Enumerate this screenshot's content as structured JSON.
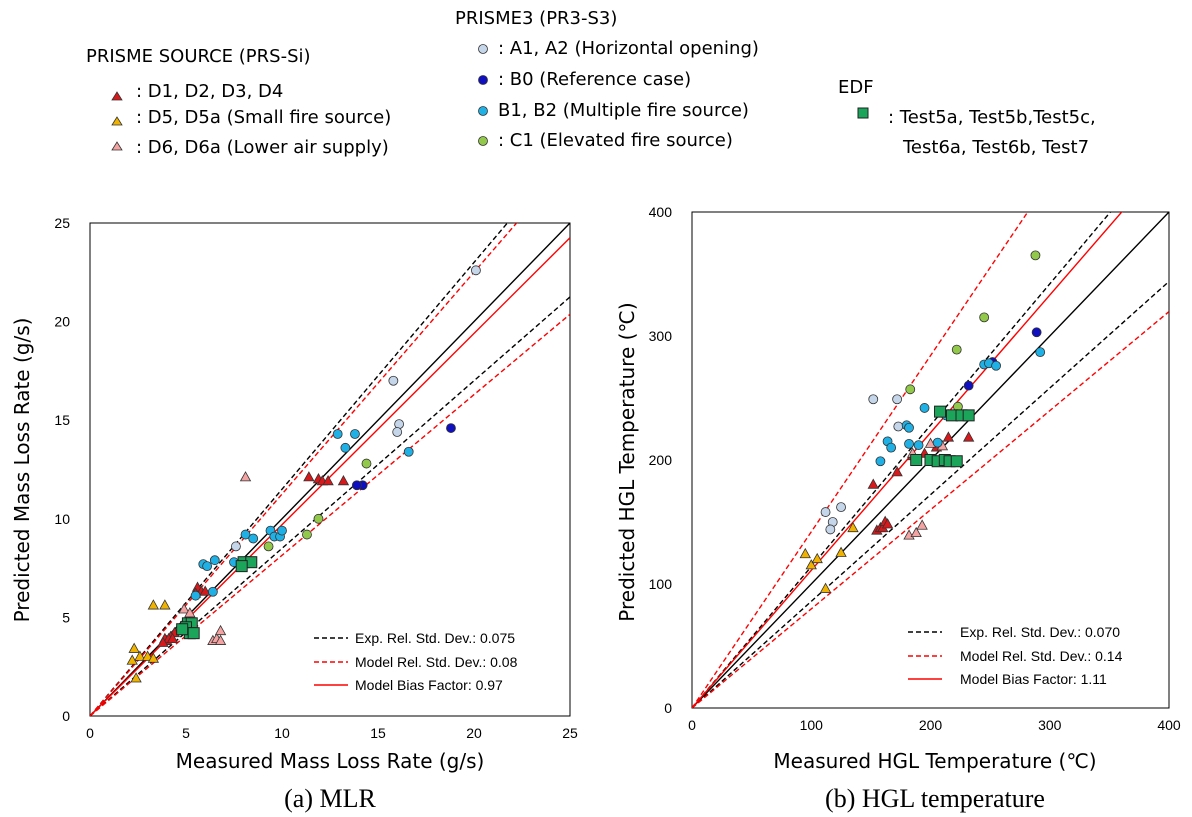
{
  "legend": {
    "groups": [
      {
        "title": "PRISME SOURCE (PRS-Si)",
        "entries": [
          {
            "marker": "triangle",
            "fill": "#d7191c",
            "label": ": D1, D2, D3, D4"
          },
          {
            "marker": "triangle",
            "fill": "#f0b400",
            "label": ": D5, D5a (Small fire source)"
          },
          {
            "marker": "triangle",
            "fill": "#f4a3a3",
            "label": ": D6, D6a (Lower air supply)"
          }
        ]
      },
      {
        "title": "PRISME3 (PR3-S3)",
        "entries": [
          {
            "marker": "circle",
            "fill": "#c5d6ea",
            "label": ": A1, A2 (Horizontal opening)"
          },
          {
            "marker": "circle",
            "fill": "#1010c0",
            "label": ": B0 (Reference case)"
          },
          {
            "marker": "circle",
            "fill": "#1fb1e6",
            "label": " B1, B2 (Multiple fire source)"
          },
          {
            "marker": "circle",
            "fill": "#93c94a",
            "label": ": C1 (Elevated fire source)"
          }
        ]
      },
      {
        "title": "EDF",
        "entries": [
          {
            "marker": "square",
            "fill": "#1aa55a",
            "label": ": Test5a, Test5b,Test5c,",
            "label2": "Test6a, Test6b, Test7"
          }
        ]
      }
    ]
  },
  "chart_data": [
    {
      "type": "scatter",
      "xlabel": "Measured Mass Loss Rate (g/s)",
      "ylabel": "Predicted Mass Loss Rate (g/s)",
      "caption": "(a) MLR",
      "xlim": [
        0,
        25
      ],
      "ylim": [
        0,
        25
      ],
      "xticks": [
        0,
        5,
        10,
        15,
        20,
        25
      ],
      "yticks": [
        0,
        5,
        10,
        15,
        20,
        25
      ],
      "lines": [
        {
          "name": "Exp. Rel. Std. Dev.: 0.075",
          "style": "black-dashed"
        },
        {
          "name": "Model Rel. Std. Dev.: 0.08",
          "style": "red-dashed"
        },
        {
          "name": "Model Bias Factor: 0.97",
          "style": "red-solid"
        }
      ],
      "bias": 0.97,
      "exp_sd": 0.075,
      "model_sd": 0.08,
      "series": [
        {
          "name": "D1, D2, D3, D4",
          "marker": "triangle",
          "color": "#d7191c",
          "points": [
            [
              4.4,
              4.2
            ],
            [
              4.2,
              4.0
            ],
            [
              4.0,
              3.8
            ],
            [
              3.9,
              3.9
            ],
            [
              4.1,
              3.9
            ],
            [
              4.3,
              3.9
            ],
            [
              3.8,
              3.7
            ],
            [
              5.6,
              6.5
            ],
            [
              5.8,
              6.3
            ],
            [
              5.5,
              6.2
            ],
            [
              6.0,
              6.3
            ],
            [
              11.4,
              12.1
            ],
            [
              11.9,
              12.0
            ],
            [
              12.1,
              11.9
            ],
            [
              12.4,
              11.9
            ],
            [
              13.2,
              11.9
            ]
          ]
        },
        {
          "name": "D5, D5a",
          "marker": "triangle",
          "color": "#f0b400",
          "points": [
            [
              2.3,
              3.4
            ],
            [
              2.2,
              2.8
            ],
            [
              2.6,
              3.0
            ],
            [
              3.0,
              3.0
            ],
            [
              3.3,
              2.9
            ],
            [
              2.4,
              1.9
            ],
            [
              3.3,
              5.6
            ],
            [
              3.9,
              5.6
            ]
          ]
        },
        {
          "name": "D6, D6a",
          "marker": "triangle",
          "color": "#f4a3a3",
          "points": [
            [
              8.1,
              12.1
            ],
            [
              6.4,
              3.8
            ],
            [
              6.6,
              3.9
            ],
            [
              6.8,
              3.8
            ],
            [
              6.8,
              4.3
            ],
            [
              4.9,
              5.4
            ],
            [
              5.2,
              5.2
            ]
          ]
        },
        {
          "name": "A1, A2",
          "marker": "circle",
          "color": "#c5d6ea",
          "points": [
            [
              20.1,
              22.6
            ],
            [
              15.8,
              17.0
            ],
            [
              16.1,
              14.8
            ],
            [
              16.0,
              14.4
            ],
            [
              7.6,
              8.6
            ]
          ]
        },
        {
          "name": "B0",
          "marker": "circle",
          "color": "#1010c0",
          "points": [
            [
              18.8,
              14.6
            ],
            [
              14.2,
              11.7
            ],
            [
              13.9,
              11.7
            ]
          ]
        },
        {
          "name": "B1, B2",
          "marker": "circle",
          "color": "#1fb1e6",
          "points": [
            [
              12.9,
              14.3
            ],
            [
              13.8,
              14.3
            ],
            [
              13.3,
              13.6
            ],
            [
              16.6,
              13.4
            ],
            [
              8.1,
              9.2
            ],
            [
              8.5,
              9.0
            ],
            [
              9.4,
              9.4
            ],
            [
              9.6,
              9.1
            ],
            [
              9.9,
              9.1
            ],
            [
              10.0,
              9.4
            ],
            [
              6.5,
              7.9
            ],
            [
              5.9,
              7.7
            ],
            [
              6.1,
              7.6
            ],
            [
              7.5,
              7.8
            ],
            [
              7.9,
              7.7
            ],
            [
              6.4,
              6.3
            ],
            [
              5.5,
              6.1
            ],
            [
              5.2,
              4.4
            ]
          ]
        },
        {
          "name": "C1",
          "marker": "circle",
          "color": "#93c94a",
          "points": [
            [
              14.4,
              12.8
            ],
            [
              11.9,
              10.0
            ],
            [
              11.3,
              9.2
            ],
            [
              9.3,
              8.6
            ]
          ]
        },
        {
          "name": "EDF",
          "marker": "square",
          "color": "#1aa55a",
          "points": [
            [
              8.0,
              7.8
            ],
            [
              8.4,
              7.8
            ],
            [
              7.9,
              7.6
            ],
            [
              5.1,
              4.7
            ],
            [
              5.3,
              4.7
            ],
            [
              5.0,
              4.5
            ],
            [
              5.2,
              4.2
            ],
            [
              5.4,
              4.2
            ],
            [
              4.8,
              4.4
            ]
          ]
        }
      ]
    },
    {
      "type": "scatter",
      "xlabel": "Measured HGL Temperature (℃)",
      "ylabel": "Predicted HGL Temperature (℃)",
      "caption": "(b) HGL temperature",
      "xlim": [
        0,
        400
      ],
      "ylim": [
        0,
        400
      ],
      "xticks": [
        0,
        100,
        200,
        300,
        400
      ],
      "yticks": [
        0,
        100,
        200,
        300,
        400
      ],
      "lines": [
        {
          "name": "Exp. Rel. Std. Dev.: 0.070",
          "style": "black-dashed"
        },
        {
          "name": "Model Rel. Std. Dev.: 0.14",
          "style": "red-dashed"
        },
        {
          "name": "Model Bias Factor: 1.11",
          "style": "red-solid"
        }
      ],
      "bias": 1.11,
      "exp_sd": 0.07,
      "model_sd": 0.14,
      "series": [
        {
          "name": "D1, D2, D3, D4",
          "marker": "triangle",
          "color": "#d7191c",
          "points": [
            [
              155,
              143
            ],
            [
              158,
              145
            ],
            [
              160,
              145
            ],
            [
              162,
              150
            ],
            [
              164,
              148
            ],
            [
              152,
              180
            ],
            [
              172,
              190
            ],
            [
              185,
              203
            ],
            [
              195,
              205
            ],
            [
              205,
              210
            ],
            [
              215,
              218
            ],
            [
              232,
              218
            ]
          ]
        },
        {
          "name": "D5, D5a",
          "marker": "triangle",
          "color": "#f0b400",
          "points": [
            [
              95,
              124
            ],
            [
              100,
              115
            ],
            [
              105,
              120
            ],
            [
              112,
              96
            ],
            [
              125,
              125
            ],
            [
              135,
              145
            ]
          ]
        },
        {
          "name": "D6, D6a",
          "marker": "triangle",
          "color": "#f4a3a3",
          "points": [
            [
              182,
              139
            ],
            [
              188,
              141
            ],
            [
              193,
              147
            ],
            [
              185,
              205
            ],
            [
              200,
              213
            ],
            [
              210,
              211
            ]
          ]
        },
        {
          "name": "A1, A2",
          "marker": "circle",
          "color": "#c5d6ea",
          "points": [
            [
              152,
              249
            ],
            [
              172,
              249
            ],
            [
              112,
              158
            ],
            [
              118,
              150
            ],
            [
              116,
              144
            ],
            [
              125,
              162
            ],
            [
              173,
              227
            ]
          ]
        },
        {
          "name": "B0",
          "marker": "circle",
          "color": "#1010c0",
          "points": [
            [
              289,
              303
            ],
            [
              232,
              260
            ],
            [
              252,
              279
            ],
            [
              215,
              237
            ]
          ]
        },
        {
          "name": "B1, B2",
          "marker": "circle",
          "color": "#1fb1e6",
          "points": [
            [
              292,
              287
            ],
            [
              245,
              277
            ],
            [
              249,
              278
            ],
            [
              255,
              276
            ],
            [
              195,
              242
            ],
            [
              180,
              228
            ],
            [
              182,
              226
            ],
            [
              164,
              215
            ],
            [
              167,
              210
            ],
            [
              158,
              199
            ],
            [
              182,
              213
            ],
            [
              190,
              212
            ],
            [
              206,
              214
            ],
            [
              213,
              236
            ],
            [
              220,
              237
            ],
            [
              225,
              236
            ]
          ]
        },
        {
          "name": "C1",
          "marker": "circle",
          "color": "#93c94a",
          "points": [
            [
              288,
              365
            ],
            [
              245,
              315
            ],
            [
              222,
              289
            ],
            [
              183,
              257
            ],
            [
              223,
              243
            ]
          ]
        },
        {
          "name": "EDF",
          "marker": "square",
          "color": "#1aa55a",
          "points": [
            [
              208,
              239
            ],
            [
              218,
              236
            ],
            [
              226,
              236
            ],
            [
              232,
              236
            ],
            [
              188,
              200
            ],
            [
              200,
              200
            ],
            [
              206,
              199
            ],
            [
              212,
              200
            ],
            [
              216,
              199
            ],
            [
              222,
              199
            ]
          ]
        }
      ]
    }
  ]
}
